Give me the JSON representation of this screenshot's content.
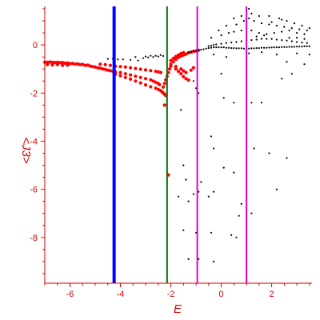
{
  "chart_data": {
    "type": "scatter",
    "xlabel": "E",
    "ylabel": "<J3>",
    "xlim": [
      -7.0,
      3.6
    ],
    "ylim": [
      -9.9,
      1.6
    ],
    "x_ticks": [
      -6,
      -4,
      -2,
      0,
      2
    ],
    "y_ticks": [
      0,
      -2,
      -4,
      -6,
      -8
    ],
    "grid": false,
    "vertical_lines": [
      {
        "x": -4.25,
        "color": "#0000ff"
      },
      {
        "x": -2.15,
        "color": "#007000"
      },
      {
        "x": -0.95,
        "color": "#e000e0"
      },
      {
        "x": 1.0,
        "color": "#e000e0"
      }
    ],
    "series": [
      {
        "color": "#ff0000",
        "points": [
          [
            -7.0,
            -0.72
          ],
          [
            -6.9,
            -0.72
          ],
          [
            -6.8,
            -0.71
          ],
          [
            -6.7,
            -0.72
          ],
          [
            -6.6,
            -0.73
          ],
          [
            -6.5,
            -0.72
          ],
          [
            -6.4,
            -0.74
          ],
          [
            -6.3,
            -0.73
          ],
          [
            -6.2,
            -0.76
          ],
          [
            -6.1,
            -0.75
          ],
          [
            -6.0,
            -0.78
          ],
          [
            -5.9,
            -0.77
          ],
          [
            -5.8,
            -0.8
          ],
          [
            -5.7,
            -0.79
          ],
          [
            -5.6,
            -0.82
          ],
          [
            -5.5,
            -0.81
          ],
          [
            -5.4,
            -0.85
          ],
          [
            -5.3,
            -0.84
          ],
          [
            -5.2,
            -0.88
          ],
          [
            -5.1,
            -0.9
          ],
          [
            -5.0,
            -0.92
          ],
          [
            -4.9,
            -0.95
          ],
          [
            -4.8,
            -0.97
          ],
          [
            -4.7,
            -1.0
          ],
          [
            -4.6,
            -1.02
          ],
          [
            -4.5,
            -1.05
          ],
          [
            -4.4,
            -1.07
          ],
          [
            -4.3,
            -1.1
          ],
          [
            -6.9,
            -0.82
          ],
          [
            -6.7,
            -0.83
          ],
          [
            -6.5,
            -0.82
          ],
          [
            -6.3,
            -0.85
          ],
          [
            -6.1,
            -0.84
          ],
          [
            -4.8,
            -0.8
          ],
          [
            -4.6,
            -0.82
          ],
          [
            -4.4,
            -0.85
          ],
          [
            -4.2,
            -0.88
          ],
          [
            -4.0,
            -0.9
          ],
          [
            -3.8,
            -0.92
          ],
          [
            -3.6,
            -0.95
          ],
          [
            -3.4,
            -0.98
          ],
          [
            -3.2,
            -1.01
          ],
          [
            -3.0,
            -1.04
          ],
          [
            -2.8,
            -1.07
          ],
          [
            -2.6,
            -1.1
          ],
          [
            -2.5,
            -1.12
          ],
          [
            -2.4,
            -1.15
          ],
          [
            -4.2,
            -1.12
          ],
          [
            -4.0,
            -1.15
          ],
          [
            -3.8,
            -1.2
          ],
          [
            -3.6,
            -1.25
          ],
          [
            -3.4,
            -1.3
          ],
          [
            -3.2,
            -1.35
          ],
          [
            -3.0,
            -1.4
          ],
          [
            -2.8,
            -1.45
          ],
          [
            -2.7,
            -1.5
          ],
          [
            -2.6,
            -1.55
          ],
          [
            -2.5,
            -1.6
          ],
          [
            -2.45,
            -1.65
          ],
          [
            -4.2,
            -1.22
          ],
          [
            -4.0,
            -1.28
          ],
          [
            -3.8,
            -1.35
          ],
          [
            -3.6,
            -1.42
          ],
          [
            -3.4,
            -1.5
          ],
          [
            -3.2,
            -1.58
          ],
          [
            -3.0,
            -1.66
          ],
          [
            -2.8,
            -1.74
          ],
          [
            -2.6,
            -1.8
          ],
          [
            -2.5,
            -1.85
          ],
          [
            -2.4,
            -1.9
          ],
          [
            -2.35,
            -1.95
          ],
          [
            -2.3,
            -2.0
          ],
          [
            -2.25,
            -2.05
          ],
          [
            -2.2,
            -2.1
          ],
          [
            -2.3,
            -1.75
          ],
          [
            -2.25,
            -1.6
          ],
          [
            -2.2,
            -1.45
          ],
          [
            -2.15,
            -1.3
          ],
          [
            -2.1,
            -1.15
          ],
          [
            -2.05,
            -1.0
          ],
          [
            -2.0,
            -0.88
          ],
          [
            -2.0,
            -0.8
          ],
          [
            -1.9,
            -0.7
          ],
          [
            -1.8,
            -0.6
          ],
          [
            -1.7,
            -0.52
          ],
          [
            -1.6,
            -0.47
          ],
          [
            -1.5,
            -0.42
          ],
          [
            -1.4,
            -0.38
          ],
          [
            -1.3,
            -0.33
          ],
          [
            -1.2,
            -0.3
          ],
          [
            -1.1,
            -0.27
          ],
          [
            -1.0,
            -0.25
          ],
          [
            -0.9,
            -0.22
          ],
          [
            -2.0,
            -0.65
          ],
          [
            -1.9,
            -0.56
          ],
          [
            -1.8,
            -0.48
          ],
          [
            -1.7,
            -0.42
          ],
          [
            -1.6,
            -0.36
          ],
          [
            -1.5,
            -0.32
          ],
          [
            -1.8,
            -1.0
          ],
          [
            -1.7,
            -1.1
          ],
          [
            -1.6,
            -1.2
          ],
          [
            -1.5,
            -1.32
          ],
          [
            -1.4,
            -1.4
          ],
          [
            -1.3,
            -1.46
          ],
          [
            -1.8,
            -0.9
          ],
          [
            -1.6,
            -1.0
          ],
          [
            -1.5,
            -1.08
          ],
          [
            -1.4,
            -1.15
          ],
          [
            -1.2,
            -1.05
          ],
          [
            -1.1,
            -0.95
          ],
          [
            -2.25,
            -2.5
          ],
          [
            -2.1,
            -5.4
          ]
        ]
      },
      {
        "color": "#000000",
        "points": [
          [
            -4.5,
            -0.58
          ],
          [
            -4.3,
            -0.58
          ],
          [
            -4.1,
            -0.6
          ],
          [
            -3.9,
            -0.6
          ],
          [
            -3.6,
            -0.62
          ],
          [
            -3.3,
            -0.65
          ],
          [
            -3.1,
            -0.55
          ],
          [
            -2.9,
            -0.52
          ],
          [
            -2.7,
            -0.5
          ],
          [
            -2.5,
            -0.48
          ],
          [
            -2.3,
            -0.46
          ],
          [
            -3.4,
            -0.5
          ],
          [
            -3.0,
            -0.48
          ],
          [
            -2.8,
            -0.45
          ],
          [
            -2.6,
            -0.45
          ],
          [
            -2.4,
            -0.42
          ],
          [
            -1.3,
            -0.3
          ],
          [
            -1.2,
            -0.28
          ],
          [
            -1.1,
            -0.25
          ],
          [
            -1.0,
            -0.25
          ],
          [
            -0.9,
            -0.22
          ],
          [
            -0.8,
            -0.2
          ],
          [
            -0.7,
            -0.18
          ],
          [
            -0.6,
            -0.15
          ],
          [
            -0.5,
            -0.13
          ],
          [
            -0.4,
            -0.12
          ],
          [
            -0.3,
            -0.1
          ],
          [
            -0.2,
            -0.1
          ],
          [
            -0.1,
            -0.1
          ],
          [
            0.0,
            -0.1
          ],
          [
            0.1,
            -0.1
          ],
          [
            0.2,
            -0.12
          ],
          [
            0.3,
            -0.12
          ],
          [
            0.4,
            -0.13
          ],
          [
            0.5,
            -0.13
          ],
          [
            0.6,
            -0.14
          ],
          [
            0.7,
            -0.14
          ],
          [
            0.8,
            -0.14
          ],
          [
            0.9,
            -0.15
          ],
          [
            1.0,
            -0.15
          ],
          [
            1.1,
            -0.15
          ],
          [
            1.2,
            -0.14
          ],
          [
            1.3,
            -0.14
          ],
          [
            1.4,
            -0.13
          ],
          [
            1.5,
            -0.13
          ],
          [
            1.6,
            -0.12
          ],
          [
            1.7,
            -0.12
          ],
          [
            1.8,
            -0.12
          ],
          [
            1.9,
            -0.11
          ],
          [
            2.0,
            -0.11
          ],
          [
            2.1,
            -0.1
          ],
          [
            2.2,
            -0.1
          ],
          [
            2.3,
            -0.1
          ],
          [
            2.4,
            -0.09
          ],
          [
            2.5,
            -0.09
          ],
          [
            2.6,
            -0.09
          ],
          [
            2.7,
            -0.08
          ],
          [
            2.8,
            -0.08
          ],
          [
            2.9,
            -0.08
          ],
          [
            3.0,
            -0.07
          ],
          [
            3.1,
            -0.07
          ],
          [
            3.2,
            -0.07
          ],
          [
            3.3,
            -0.06
          ],
          [
            3.4,
            -0.06
          ],
          [
            3.5,
            -0.06
          ],
          [
            -0.5,
            -0.05
          ],
          [
            -0.4,
            -0.03
          ],
          [
            -0.3,
            0.0
          ],
          [
            -0.2,
            0.02
          ],
          [
            0.0,
            0.05
          ],
          [
            0.2,
            0.08
          ],
          [
            0.4,
            0.1
          ],
          [
            0.6,
            0.12
          ],
          [
            0.8,
            0.15
          ],
          [
            1.0,
            0.18
          ],
          [
            1.2,
            0.2
          ],
          [
            1.4,
            0.22
          ],
          [
            1.6,
            0.25
          ],
          [
            1.8,
            0.25
          ],
          [
            2.0,
            0.25
          ],
          [
            2.2,
            0.22
          ],
          [
            2.4,
            0.2
          ],
          [
            2.6,
            0.18
          ],
          [
            2.8,
            0.15
          ],
          [
            3.0,
            0.12
          ],
          [
            3.2,
            0.1
          ],
          [
            3.4,
            0.08
          ],
          [
            -0.4,
            0.3
          ],
          [
            0.0,
            0.4
          ],
          [
            0.3,
            0.5
          ],
          [
            0.5,
            0.55
          ],
          [
            0.8,
            0.6
          ],
          [
            1.0,
            0.7
          ],
          [
            1.2,
            0.6
          ],
          [
            1.5,
            0.5
          ],
          [
            1.8,
            0.45
          ],
          [
            2.1,
            0.5
          ],
          [
            2.4,
            0.55
          ],
          [
            2.7,
            0.6
          ],
          [
            3.0,
            0.5
          ],
          [
            3.3,
            0.45
          ],
          [
            0.6,
            0.85
          ],
          [
            0.9,
            1.0
          ],
          [
            1.1,
            1.1
          ],
          [
            1.3,
            1.0
          ],
          [
            1.6,
            0.9
          ],
          [
            1.9,
            0.85
          ],
          [
            2.2,
            0.8
          ],
          [
            2.5,
            0.75
          ],
          [
            2.8,
            0.7
          ],
          [
            3.1,
            0.65
          ],
          [
            3.4,
            0.6
          ],
          [
            0.8,
            1.2
          ],
          [
            1.0,
            1.4
          ],
          [
            1.1,
            1.5
          ],
          [
            1.2,
            1.3
          ],
          [
            1.5,
            1.2
          ],
          [
            1.9,
            1.2
          ],
          [
            2.3,
            1.1
          ],
          [
            2.6,
            1.0
          ],
          [
            2.9,
            0.9
          ],
          [
            3.2,
            0.8
          ],
          [
            3.5,
            0.7
          ],
          [
            0.5,
            1.1
          ],
          [
            0.2,
            0.8
          ],
          [
            -0.1,
            0.6
          ],
          [
            1.4,
            0.35
          ],
          [
            1.7,
            0.4
          ],
          [
            2.0,
            0.95
          ],
          [
            2.4,
            1.05
          ],
          [
            2.7,
            0.3
          ],
          [
            3.0,
            0.3
          ],
          [
            3.3,
            0.25
          ],
          [
            -0.3,
            -0.4
          ],
          [
            0.2,
            -0.5
          ],
          [
            1.1,
            -0.35
          ],
          [
            1.6,
            -0.3
          ],
          [
            2.2,
            -0.4
          ],
          [
            2.6,
            -0.7
          ],
          [
            3.0,
            -0.35
          ],
          [
            3.3,
            -0.8
          ],
          [
            3.5,
            -0.4
          ],
          [
            -1.1,
            -1.5
          ],
          [
            -1.0,
            -1.8
          ],
          [
            -0.9,
            -2.0
          ],
          [
            0.0,
            -1.2
          ],
          [
            0.1,
            -2.2
          ],
          [
            0.5,
            -2.4
          ],
          [
            1.2,
            -2.4
          ],
          [
            1.6,
            -2.4
          ],
          [
            2.4,
            -1.4
          ],
          [
            2.8,
            -1.2
          ],
          [
            -1.6,
            -2.7
          ],
          [
            -1.5,
            -5.0
          ],
          [
            -1.4,
            -5.6
          ],
          [
            -1.7,
            -6.3
          ],
          [
            -1.3,
            -6.5
          ],
          [
            -1.1,
            -6.2
          ],
          [
            -0.9,
            -6.1
          ],
          [
            -0.8,
            -5.7
          ],
          [
            -0.5,
            -6.3
          ],
          [
            -0.3,
            -6.1
          ],
          [
            -0.4,
            -3.8
          ],
          [
            -0.3,
            -4.3
          ],
          [
            0.1,
            -5.1
          ],
          [
            0.5,
            -5.3
          ],
          [
            0.8,
            -6.6
          ],
          [
            1.3,
            -4.3
          ],
          [
            1.9,
            -4.5
          ],
          [
            2.2,
            -6.0
          ],
          [
            2.6,
            -4.7
          ],
          [
            0.7,
            -7.1
          ],
          [
            1.2,
            -7.0
          ],
          [
            -1.5,
            -7.7
          ],
          [
            -1.0,
            -7.8
          ],
          [
            -0.4,
            -7.8
          ],
          [
            0.4,
            -7.9
          ],
          [
            0.6,
            -8.0
          ],
          [
            -1.3,
            -8.9
          ],
          [
            -0.9,
            -8.9
          ],
          [
            -0.3,
            -9.0
          ]
        ]
      }
    ]
  }
}
